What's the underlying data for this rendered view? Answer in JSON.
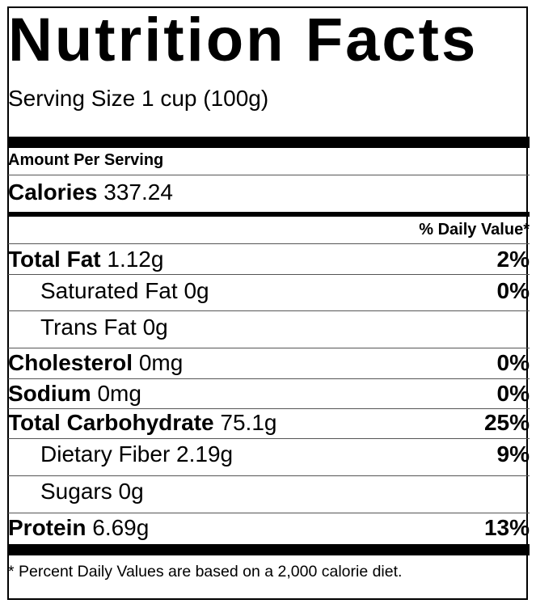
{
  "title": "Nutrition Facts",
  "serving_size": "Serving Size 1 cup (100g)",
  "amount_per_serving": "Amount Per Serving",
  "calories": {
    "label": "Calories",
    "value": "337.24"
  },
  "daily_value_header": "% Daily Value*",
  "nutrients": [
    {
      "label": "Total Fat",
      "amount": "1.12g",
      "dv": "2%",
      "bold": true
    },
    {
      "label": "Saturated Fat",
      "amount": "0g",
      "dv": "0%",
      "bold": false
    },
    {
      "label": "Trans Fat",
      "amount": "0g",
      "dv": "",
      "bold": false
    },
    {
      "label": "Cholesterol",
      "amount": "0mg",
      "dv": "0%",
      "bold": true
    },
    {
      "label": "Sodium",
      "amount": "0mg",
      "dv": "0%",
      "bold": true
    },
    {
      "label": "Total Carbohydrate",
      "amount": "75.1g",
      "dv": "25%",
      "bold": true
    },
    {
      "label": "Dietary Fiber",
      "amount": "2.19g",
      "dv": "9%",
      "bold": false
    },
    {
      "label": "Sugars",
      "amount": "0g",
      "dv": "",
      "bold": false
    },
    {
      "label": "Protein",
      "amount": "6.69g",
      "dv": "13%",
      "bold": true
    }
  ],
  "footnote": "Percent Daily Values are based on a 2,000 calorie diet.",
  "footnote_marker": "*"
}
